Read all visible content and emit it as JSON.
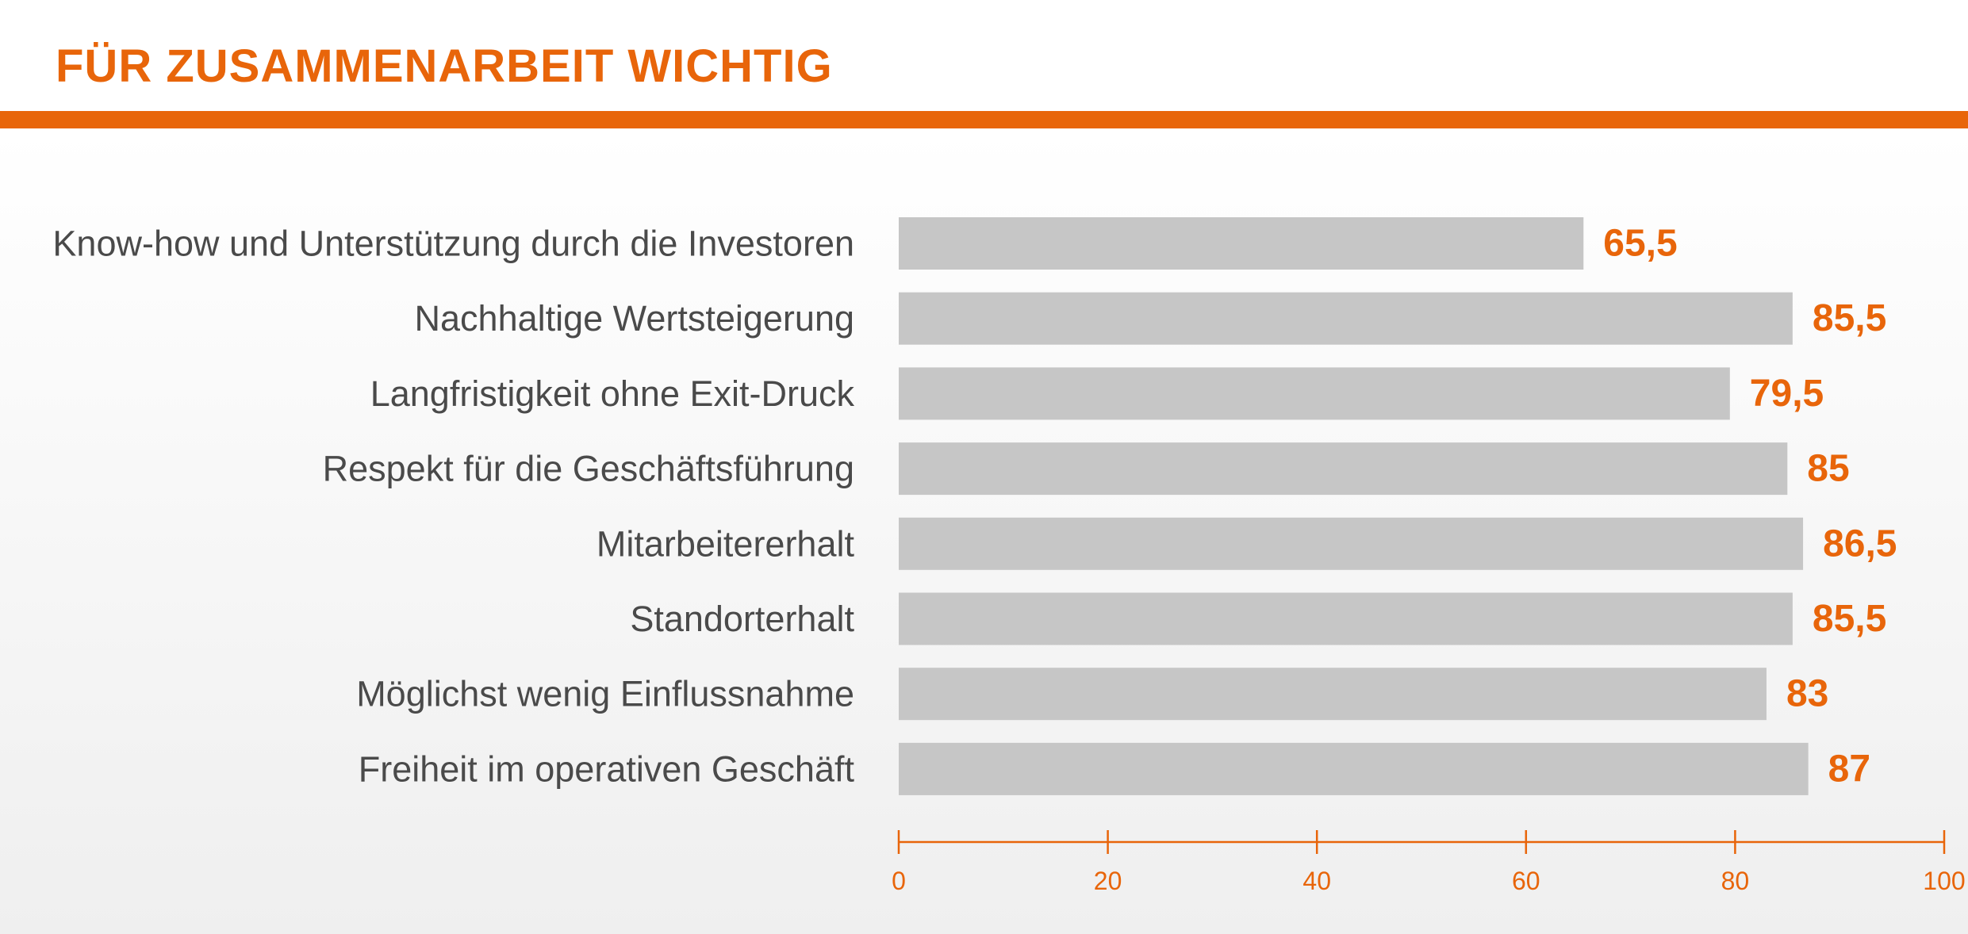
{
  "chart_data": {
    "type": "bar",
    "orientation": "horizontal",
    "title": "FÜR ZUSAMMENARBEIT WICHTIG",
    "categories": [
      "Know-how und Unterstützung durch die Investoren",
      "Nachhaltige Wertsteigerung",
      "Langfristigkeit ohne Exit-Druck",
      "Respekt für die Geschäftsführung",
      "Mitarbeitererhalt",
      "Standorterhalt",
      "Möglichst wenig Einflussnahme",
      "Freiheit im operativen Geschäft"
    ],
    "values": [
      65.5,
      85.5,
      79.5,
      85,
      86.5,
      85.5,
      83,
      87
    ],
    "value_labels": [
      "65,5",
      "85,5",
      "79,5",
      "85",
      "86,5",
      "85,5",
      "83",
      "87"
    ],
    "xlim": [
      0,
      100
    ],
    "xticks": [
      0,
      20,
      40,
      60,
      80,
      100
    ],
    "xtick_labels": [
      "0",
      "20",
      "40",
      "60",
      "80",
      "100"
    ],
    "grid": false,
    "colors": {
      "accent": "#e8650a",
      "bar": "#c6c6c6",
      "label": "#4a4a4a"
    }
  }
}
